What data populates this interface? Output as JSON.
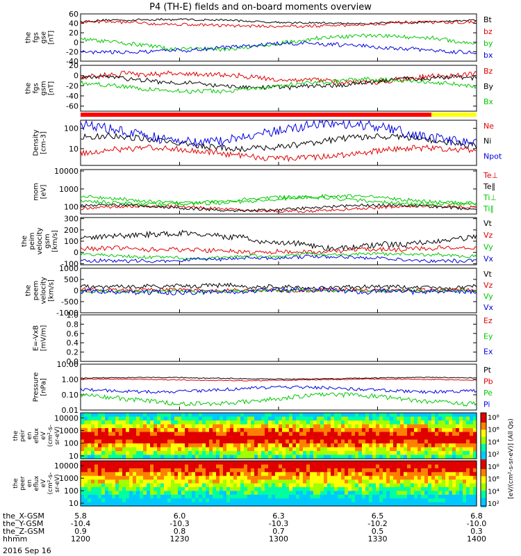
{
  "title": "P4 (TH-E) fields and on-board moments overview",
  "colors": {
    "black": "#000000",
    "red": "#e00000",
    "green": "#00c800",
    "blue": "#0000e0",
    "yellow": "#ffff00",
    "mode_red": "#ff0000"
  },
  "chart_data": {
    "type": "line",
    "x_axis": {
      "ticks": [
        "1200",
        "1230",
        "1300",
        "1330",
        "1400"
      ],
      "x_range": [
        "1200",
        "1400"
      ],
      "ephemeris": [
        {
          "label": "the_X-GSM",
          "values": [
            "5.8",
            "6.0",
            "6.3",
            "6.5",
            "6.8"
          ]
        },
        {
          "label": "the_Y-GSM",
          "values": [
            "-10.4",
            "-10.3",
            "-10.3",
            "-10.2",
            "-10.0"
          ]
        },
        {
          "label": "the_Z-GSM",
          "values": [
            "0.9",
            "0.8",
            "0.7",
            "0.5",
            "0.3"
          ]
        },
        {
          "label": "hhmm",
          "values": [
            "1200",
            "1230",
            "1300",
            "1330",
            "1400"
          ]
        }
      ],
      "date": "2016 Sep 16"
    },
    "panels": [
      {
        "id": "fgs_gse",
        "ylabel_lines": [
          "the",
          "fgs",
          "gse",
          "[nT]"
        ],
        "y_ticks": [
          "60",
          "40",
          "20",
          "0",
          "-20",
          "-40"
        ],
        "ylim": [
          -40,
          60
        ],
        "log": false,
        "series": [
          {
            "name": "Bt",
            "color": "black",
            "base": 44,
            "amp": 4,
            "noise": 2
          },
          {
            "name": "bz",
            "color": "red",
            "base": 38,
            "amp": 4,
            "noise": 3
          },
          {
            "name": "by",
            "color": "green",
            "base": 0,
            "amp": 14,
            "noise": 4
          },
          {
            "name": "bx",
            "color": "blue",
            "base": -12,
            "amp": 10,
            "noise": 4
          }
        ]
      },
      {
        "id": "fgs_gsm",
        "ylabel_lines": [
          "the",
          "fgs",
          "gsm",
          "[nT]"
        ],
        "y_ticks": [
          "20",
          "0",
          "-20",
          "-40",
          "-60"
        ],
        "ylim": [
          -70,
          20
        ],
        "log": false,
        "series": [
          {
            "name": "Bz",
            "color": "red",
            "base": -4,
            "amp": 8,
            "noise": 5
          },
          {
            "name": "By",
            "color": "black",
            "base": -14,
            "amp": 10,
            "noise": 4
          },
          {
            "name": "Bx",
            "color": "green",
            "base": -20,
            "amp": 12,
            "noise": 4
          }
        ]
      },
      {
        "id": "density",
        "ylabel_lines": [
          "Density",
          "[cm-3]"
        ],
        "y_ticks": [
          "100",
          "10"
        ],
        "y_tick_values": [
          100,
          10
        ],
        "ylim": [
          1.5,
          250
        ],
        "log": true,
        "series": [
          {
            "name": "Ne",
            "color": "red",
            "base": 6,
            "amp": 0.25,
            "noise": 0.15
          },
          {
            "name": "Ni",
            "color": "black",
            "base": 20,
            "amp": 0.3,
            "noise": 0.15
          },
          {
            "name": "Npot",
            "color": "blue",
            "base": 60,
            "amp": 0.45,
            "noise": 0.25
          }
        ]
      },
      {
        "id": "temperature",
        "ylabel_lines": [
          "mom",
          "[eV]"
        ],
        "y_ticks": [
          "10000",
          "1000",
          "100"
        ],
        "y_tick_values": [
          10000,
          1000,
          100
        ],
        "ylim": [
          40,
          12000
        ],
        "log": true,
        "series": [
          {
            "name": "Te⊥",
            "color": "red",
            "base": 80,
            "amp": 0.15,
            "noise": 0.08
          },
          {
            "name": "Te∥",
            "color": "black",
            "base": 90,
            "amp": 0.15,
            "noise": 0.08
          },
          {
            "name": "Ti⊥",
            "color": "green",
            "base": 250,
            "amp": 0.2,
            "noise": 0.1
          },
          {
            "name": "Ti∥",
            "color": "green",
            "base": 220,
            "amp": 0.2,
            "noise": 0.1
          }
        ]
      },
      {
        "id": "peim_velocity",
        "ylabel_lines": [
          "the",
          "peim",
          "velocity",
          "gsm",
          "[km/s]"
        ],
        "y_ticks": [
          "300",
          "200",
          "100",
          "0",
          "-100"
        ],
        "ylim": [
          -110,
          310
        ],
        "log": false,
        "series": [
          {
            "name": "Vt",
            "color": "black",
            "base": 110,
            "amp": 60,
            "noise": 25
          },
          {
            "name": "Vz",
            "color": "red",
            "base": 20,
            "amp": 20,
            "noise": 20
          },
          {
            "name": "Vy",
            "color": "green",
            "base": -30,
            "amp": 20,
            "noise": 15
          },
          {
            "name": "Vx",
            "color": "blue",
            "base": -60,
            "amp": 20,
            "noise": 15
          }
        ]
      },
      {
        "id": "peem_velocity",
        "ylabel_lines": [
          "the",
          "peem",
          "velocity",
          "[km/s]"
        ],
        "y_ticks": [
          "1000",
          "500",
          "0",
          "-500",
          "-1000"
        ],
        "ylim": [
          -1000,
          1000
        ],
        "log": false,
        "series": [
          {
            "name": "Vt",
            "color": "black",
            "base": 180,
            "amp": 40,
            "noise": 90
          },
          {
            "name": "Vz",
            "color": "red",
            "base": 20,
            "amp": 20,
            "noise": 80
          },
          {
            "name": "Vy",
            "color": "green",
            "base": -20,
            "amp": 20,
            "noise": 70
          },
          {
            "name": "Vx",
            "color": "blue",
            "base": -40,
            "amp": 20,
            "noise": 100
          }
        ]
      },
      {
        "id": "efield",
        "ylabel_lines": [
          "E=-VxB",
          "[mV/m]"
        ],
        "y_ticks": [
          "1.0",
          "0.8",
          "0.6",
          "0.4",
          "0.2",
          "0.0"
        ],
        "ylim": [
          0,
          1
        ],
        "log": false,
        "series": [
          {
            "name": "Ez",
            "color": "red",
            "empty": true
          },
          {
            "name": "Ey",
            "color": "green",
            "empty": true
          },
          {
            "name": "Ex",
            "color": "blue",
            "empty": true
          }
        ]
      },
      {
        "id": "pressure",
        "ylabel_lines": [
          "Pressure",
          "[nPa]"
        ],
        "y_ticks": [
          "10.00",
          "1.00",
          "0.10",
          "0.01"
        ],
        "y_tick_values": [
          10,
          1,
          0.1,
          0.01
        ],
        "ylim": [
          0.01,
          10
        ],
        "log": true,
        "series": [
          {
            "name": "Pt",
            "color": "black",
            "base": 1.2,
            "amp": 0.05,
            "noise": 0.03
          },
          {
            "name": "Pb",
            "color": "red",
            "base": 0.95,
            "amp": 0.05,
            "noise": 0.03
          },
          {
            "name": "Pe",
            "color": "green",
            "base": 0.05,
            "amp": 0.3,
            "noise": 0.15
          },
          {
            "name": "Pi",
            "color": "blue",
            "base": 0.22,
            "amp": 0.15,
            "noise": 0.1
          }
        ]
      }
    ],
    "spectrograms": [
      {
        "id": "peir",
        "ylabel_lines": [
          "the",
          "peir",
          "en",
          "eflux",
          "eV",
          "(cm²-s-",
          "sr-eV)"
        ],
        "y_ticks": [
          "10000",
          "1000",
          "100",
          "10"
        ],
        "y_tick_values": [
          10000,
          1000,
          100,
          10
        ],
        "ylim": [
          6,
          25000
        ]
      },
      {
        "id": "peer",
        "ylabel_lines": [
          "the",
          "peer",
          "en",
          "eflux",
          "eV",
          "(cm²-s-",
          "sr-eV)"
        ],
        "y_ticks": [
          "10000",
          "1000",
          "100",
          "10"
        ],
        "y_tick_values": [
          10000,
          1000,
          100,
          10
        ],
        "ylim": [
          6,
          25000
        ]
      }
    ],
    "colorbar": {
      "ticks": [
        "10⁸",
        "10⁶",
        "10⁴",
        "10²",
        "10⁸",
        "10⁶",
        "10⁴",
        "10²"
      ],
      "label": "[eV/(cm²-s-sr-eV)] (All Qs)"
    }
  }
}
